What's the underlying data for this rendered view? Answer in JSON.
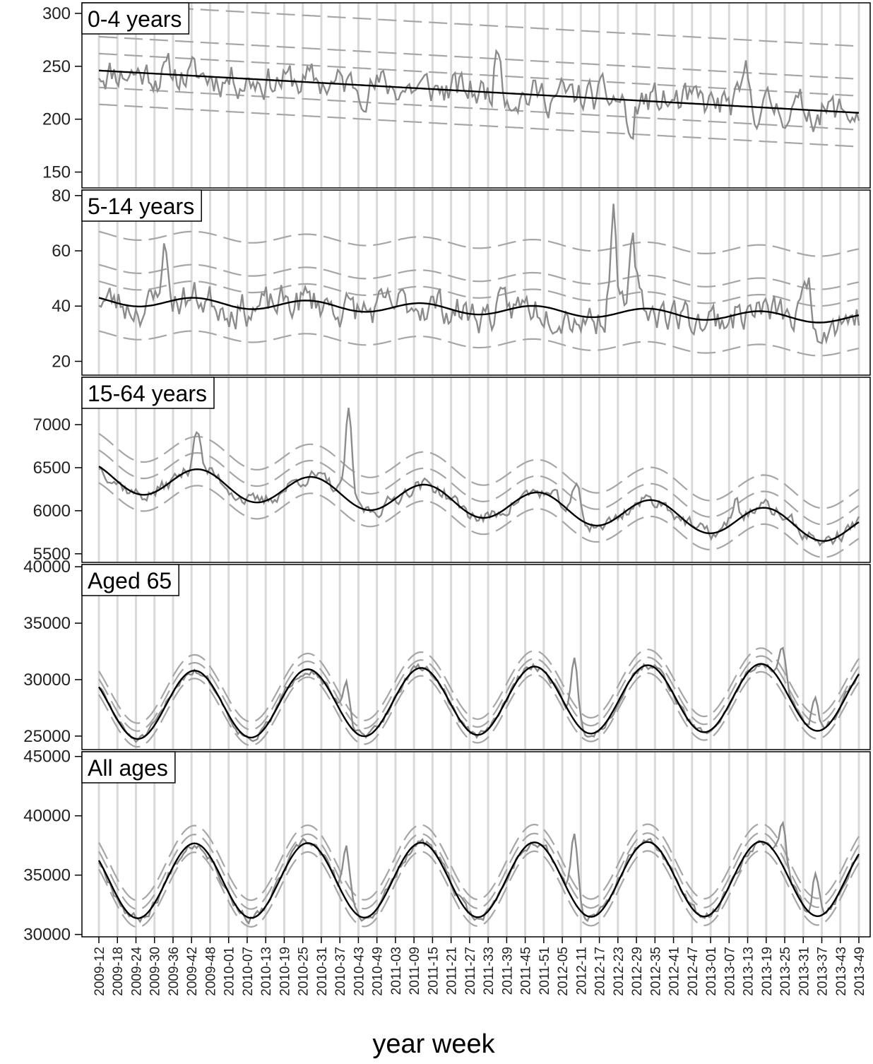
{
  "chart_data": {
    "type": "line",
    "xlabel": "year week",
    "x_tick_labels": [
      "2009-12",
      "2009-18",
      "2009-24",
      "2009-30",
      "2009-36",
      "2009-42",
      "2009-48",
      "2010-01",
      "2010-07",
      "2010-13",
      "2010-19",
      "2010-25",
      "2010-31",
      "2010-37",
      "2010-43",
      "2010-49",
      "2011-03",
      "2011-09",
      "2011-15",
      "2011-21",
      "2011-27",
      "2011-33",
      "2011-39",
      "2011-45",
      "2011-51",
      "2012-05",
      "2012-11",
      "2012-17",
      "2012-23",
      "2012-29",
      "2012-35",
      "2012-41",
      "2012-47",
      "2013-01",
      "2013-07",
      "2013-13",
      "2013-19",
      "2013-25",
      "2013-31",
      "2013-37",
      "2013-43",
      "2013-49"
    ],
    "line_colors": {
      "observed": "#8c8c8c",
      "baseline": "#000000",
      "bands": "#a6a6a6",
      "gridlines": "#d9d9d9"
    },
    "panels": [
      {
        "title": "0-4 years",
        "ylim": [
          135,
          310
        ],
        "yticks": [
          150,
          200,
          250,
          300
        ],
        "baseline": {
          "start": 246,
          "end": 206,
          "amplitude": 0,
          "phase_x": 0
        },
        "bands": [
          -32,
          -16,
          16,
          32,
          63
        ],
        "observed": {
          "noise": 14,
          "seed": 11,
          "spikes": [
            [
              184,
              45
            ],
            [
              245,
              -40
            ],
            [
              298,
              27
            ]
          ]
        }
      },
      {
        "title": "5-14 years",
        "ylim": [
          15,
          82
        ],
        "yticks": [
          20,
          40,
          60,
          80
        ],
        "baseline": {
          "start": 42,
          "end": 35.5,
          "amplitude": 1.8,
          "phase_x": 44
        },
        "bands": [
          -12,
          6,
          12,
          24
        ],
        "observed": {
          "noise": 5.5,
          "seed": 23,
          "spikes": [
            [
              30,
              20
            ],
            [
              237,
              37
            ],
            [
              246,
              20
            ],
            [
              326,
              18
            ]
          ]
        }
      },
      {
        "title": "15-64 years",
        "ylim": [
          5400,
          7550
        ],
        "yticks": [
          5500,
          6000,
          6500,
          7000
        ],
        "baseline": {
          "start": 6390,
          "end": 5790,
          "amplitude": 170,
          "phase_x": 46
        },
        "bands": [
          -190,
          190,
          380
        ],
        "observed": {
          "noise": 70,
          "seed": 37,
          "spikes": [
            [
              45,
              500
            ],
            [
              115,
              980
            ],
            [
              220,
              370
            ],
            [
              293,
              240
            ]
          ]
        }
      },
      {
        "title": "Aged 65",
        "ylim": [
          23800,
          40200
        ],
        "yticks": [
          25000,
          30000,
          35000,
          40000
        ],
        "baseline": {
          "start": 27700,
          "end": 28500,
          "amplitude": 3000,
          "phase_x": 44
        },
        "bands": [
          -700,
          700,
          1400
        ],
        "observed": {
          "noise": 300,
          "seed": 51,
          "spikes": [
            [
              114,
              3200
            ],
            [
              219,
              5300
            ],
            [
              315,
              3200
            ],
            [
              330,
              3300
            ]
          ]
        }
      },
      {
        "title": "All ages",
        "ylim": [
          29800,
          45400
        ],
        "yticks": [
          30000,
          35000,
          40000,
          45000
        ],
        "baseline": {
          "start": 34500,
          "end": 34700,
          "amplitude": 3150,
          "phase_x": 44
        },
        "bands": [
          -750,
          750,
          1500
        ],
        "observed": {
          "noise": 330,
          "seed": 67,
          "spikes": [
            [
              114,
              4400
            ],
            [
              219,
              5600
            ],
            [
              315,
              3200
            ],
            [
              330,
              3400
            ]
          ]
        }
      }
    ]
  }
}
